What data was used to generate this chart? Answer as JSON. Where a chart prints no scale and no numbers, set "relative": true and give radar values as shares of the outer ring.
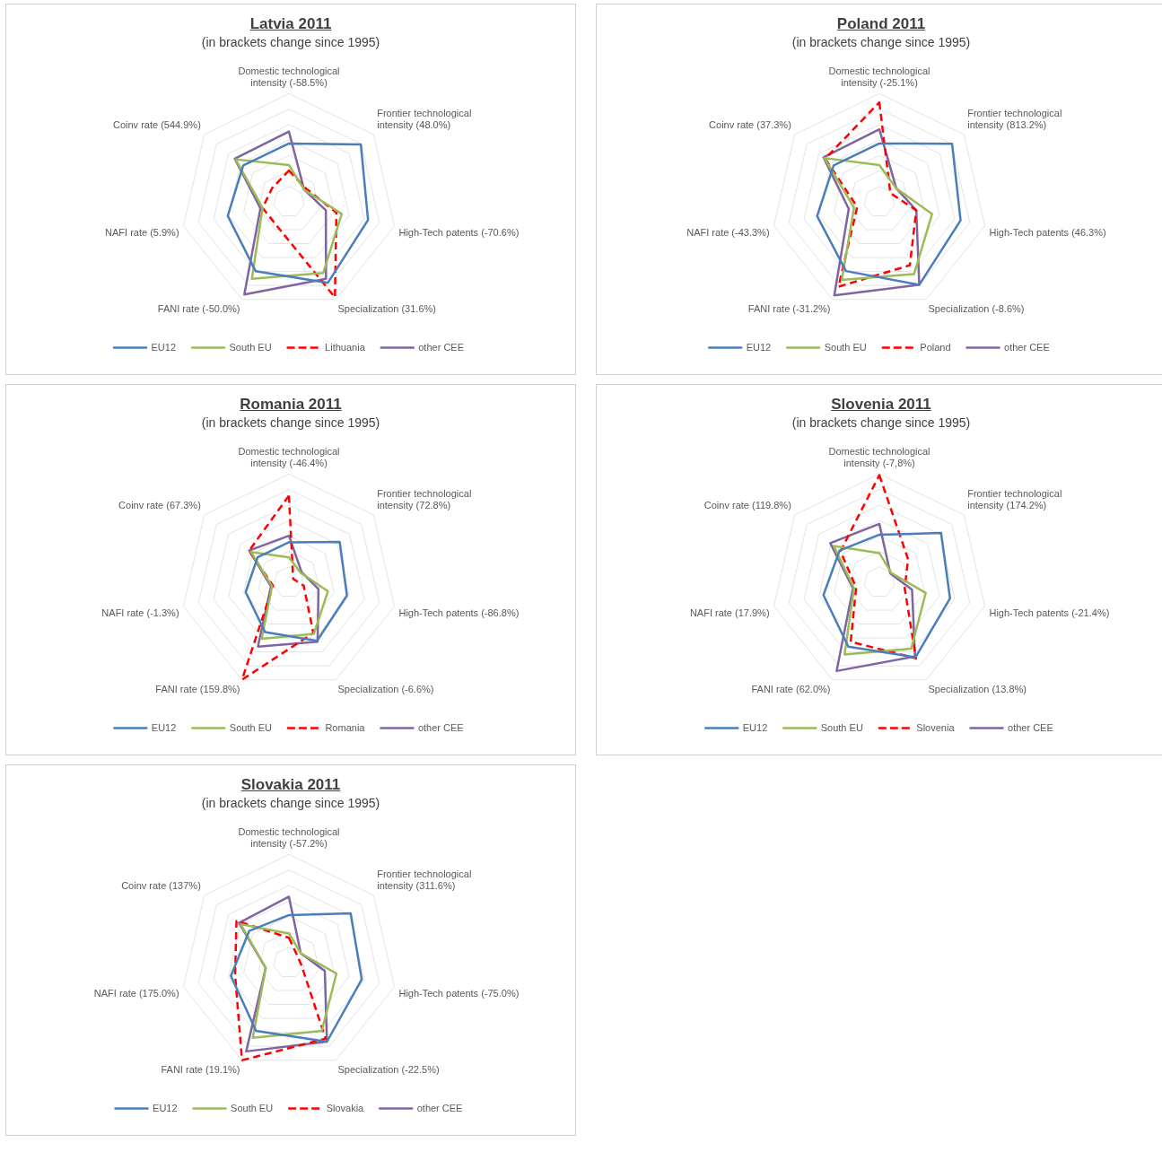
{
  "chart_data": [
    {
      "type": "radar",
      "title": "Latvia 2011",
      "subtitle": "(in brackets change since 1995)",
      "relative": true,
      "grid": true,
      "legend": "bottom",
      "marker": "none",
      "categories": [
        "Domestic technological intensity (-58.5%)",
        "Frontier technological intensity (48.0%)",
        "High-Tech patents (-70.6%)",
        "Specialization (31.6%)",
        "FANI rate (-50.0%)",
        "NAFI rate (5.9%)",
        "Coinv rate (544.9%)"
      ],
      "series": [
        {
          "name": "EU12",
          "color": "#4a7ebb",
          "line_style": "solid",
          "values": [
            0.54,
            0.85,
            0.75,
            0.83,
            0.71,
            0.58,
            0.54
          ]
        },
        {
          "name": "South EU",
          "color": "#9bbb59",
          "line_style": "solid",
          "values": [
            0.34,
            0.18,
            0.5,
            0.73,
            0.79,
            0.25,
            0.63
          ]
        },
        {
          "name": "Lithuania",
          "color": "#ff0000",
          "line_style": "dashed",
          "values": [
            0.29,
            0.2,
            0.45,
            0.98,
            0.25,
            0.25,
            0.2
          ]
        },
        {
          "name": "other CEE",
          "color": "#8064a2",
          "line_style": "solid",
          "values": [
            0.65,
            0.18,
            0.35,
            0.79,
            0.95,
            0.27,
            0.64
          ]
        }
      ]
    },
    {
      "type": "radar",
      "title": "Poland 2011",
      "subtitle": "(in brackets change since 1995)",
      "relative": true,
      "grid": true,
      "legend": "bottom",
      "marker": "none",
      "categories": [
        "Domestic technological intensity (-25.1%)",
        "Frontier technological intensity (813.2%)",
        "High-Tech patents (46.3%)",
        "Specialization (-8.6%)",
        "FANI rate (-31.2%)",
        "NAFI rate (-43.3%)",
        "Coinv rate (37.3%)"
      ],
      "series": [
        {
          "name": "EU12",
          "color": "#4a7ebb",
          "line_style": "solid",
          "values": [
            0.54,
            0.86,
            0.77,
            0.85,
            0.71,
            0.59,
            0.54
          ]
        },
        {
          "name": "South EU",
          "color": "#9bbb59",
          "line_style": "solid",
          "values": [
            0.34,
            0.2,
            0.5,
            0.74,
            0.8,
            0.24,
            0.65
          ]
        },
        {
          "name": "Poland",
          "color": "#ff0000",
          "line_style": "dashed",
          "values": [
            0.92,
            0.13,
            0.35,
            0.65,
            0.87,
            0.21,
            0.64
          ]
        },
        {
          "name": "other CEE",
          "color": "#8064a2",
          "line_style": "solid",
          "values": [
            0.67,
            0.2,
            0.35,
            0.85,
            0.96,
            0.29,
            0.66
          ]
        }
      ]
    },
    {
      "type": "radar",
      "title": "Romania 2011",
      "subtitle": "(in brackets change since 1995)",
      "relative": true,
      "grid": true,
      "legend": "bottom",
      "marker": "none",
      "categories": [
        "Domestic technological intensity (-46.4%)",
        "Frontier technological intensity (72.8%)",
        "High-Tech patents (-86.8%)",
        "Specialization (-6.6%)",
        "FANI rate (159.8%)",
        "NAFI rate (-1.3%)",
        "Coinv rate (67.3%)"
      ],
      "series": [
        {
          "name": "EU12",
          "color": "#4a7ebb",
          "line_style": "solid",
          "values": [
            0.37,
            0.6,
            0.55,
            0.6,
            0.51,
            0.41,
            0.37
          ]
        },
        {
          "name": "South EU",
          "color": "#9bbb59",
          "line_style": "solid",
          "values": [
            0.23,
            0.14,
            0.37,
            0.53,
            0.58,
            0.16,
            0.45
          ]
        },
        {
          "name": "Romania",
          "color": "#ff0000",
          "line_style": "dashed",
          "values": [
            0.8,
            0.05,
            0.14,
            0.52,
            1,
            0.15,
            0.47
          ]
        },
        {
          "name": "other CEE",
          "color": "#8064a2",
          "line_style": "solid",
          "values": [
            0.43,
            0.15,
            0.28,
            0.61,
            0.66,
            0.17,
            0.47
          ]
        }
      ]
    },
    {
      "type": "radar",
      "title": "Slovenia 2011",
      "subtitle": "(in brackets change since 1995)",
      "relative": true,
      "grid": true,
      "legend": "bottom",
      "marker": "none",
      "categories": [
        "Domestic technological intensity (-7,8%)",
        "Frontier technological intensity (174.2%)",
        "High-Tech patents (-21.4%)",
        "Specialization (13.8%)",
        "FANI rate (62.0%)",
        "NAFI rate (17.9%)",
        "Coinv rate (119.8%)"
      ],
      "series": [
        {
          "name": "EU12",
          "color": "#4a7ebb",
          "line_style": "solid",
          "values": [
            0.44,
            0.73,
            0.67,
            0.77,
            0.66,
            0.53,
            0.47
          ]
        },
        {
          "name": "South EU",
          "color": "#9bbb59",
          "line_style": "solid",
          "values": [
            0.27,
            0.14,
            0.44,
            0.68,
            0.74,
            0.24,
            0.54
          ]
        },
        {
          "name": "Slovenia",
          "color": "#ff0000",
          "line_style": "dashed",
          "values": [
            0.99,
            0.34,
            0.24,
            0.78,
            0.61,
            0.22,
            0.46
          ]
        },
        {
          "name": "other CEE",
          "color": "#8064a2",
          "line_style": "solid",
          "values": [
            0.54,
            0.13,
            0.31,
            0.76,
            0.91,
            0.25,
            0.58
          ]
        }
      ]
    },
    {
      "type": "radar",
      "title": "Slovakia 2011",
      "subtitle": "(in brackets change since 1995)",
      "relative": true,
      "grid": true,
      "legend": "bottom",
      "marker": "none",
      "categories": [
        "Domestic technological intensity (-57.2%)",
        "Frontier technological intensity (311.6%)",
        "High-Tech patents (-75.0%)",
        "Specialization (-22.5%)",
        "FANI rate (19.1%)",
        "NAFI rate (175.0%)",
        "Coinv rate (137%)"
      ],
      "series": [
        {
          "name": "EU12",
          "color": "#4a7ebb",
          "line_style": "solid",
          "values": [
            0.44,
            0.73,
            0.69,
            0.81,
            0.7,
            0.55,
            0.47
          ]
        },
        {
          "name": "South EU",
          "color": "#9bbb59",
          "line_style": "solid",
          "values": [
            0.27,
            0.14,
            0.45,
            0.7,
            0.77,
            0.22,
            0.57
          ]
        },
        {
          "name": "Slovakia",
          "color": "#ff0000",
          "line_style": "dashed",
          "values": [
            0.23,
            0.1,
            0.12,
            0.78,
            1,
            0.51,
            0.62
          ]
        },
        {
          "name": "other CEE",
          "color": "#8064a2",
          "line_style": "solid",
          "values": [
            0.61,
            0.14,
            0.34,
            0.81,
            0.91,
            0.22,
            0.59
          ]
        }
      ]
    }
  ]
}
